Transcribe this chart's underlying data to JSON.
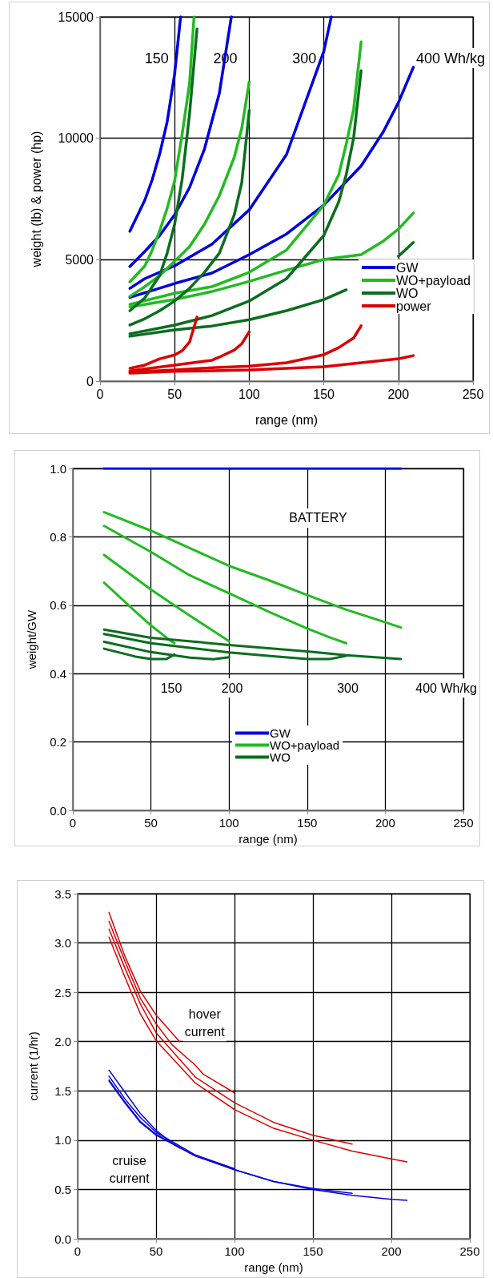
{
  "chart_data": [
    {
      "type": "line",
      "xlabel": "range (nm)",
      "ylabel": "weight (lb) & power (hp)",
      "xlim": [
        0,
        250
      ],
      "xticks": [
        0,
        50,
        100,
        150,
        200,
        250
      ],
      "ylim": [
        0,
        15000
      ],
      "yticks": [
        0,
        5000,
        10000,
        15000
      ],
      "grid": true,
      "legend": "right",
      "marker": "none",
      "line_style": "solid",
      "annotations": [
        "150",
        "200",
        "300",
        "400 Wh/kg"
      ],
      "series": [
        {
          "name": "GW",
          "color": "#0000dd",
          "x": [
            20,
            30,
            35,
            40,
            45,
            50,
            54
          ],
          "values": [
            6170,
            7450,
            8300,
            9360,
            10680,
            12650,
            15000
          ]
        },
        {
          "color": "#0000dd",
          "x": [
            20,
            30,
            40,
            50,
            60,
            70,
            80,
            88
          ],
          "values": [
            4720,
            5340,
            6000,
            6850,
            7970,
            9560,
            11860,
            15000
          ]
        },
        {
          "color": "#0000dd",
          "x": [
            20,
            30,
            50,
            75,
            100,
            125,
            150,
            155
          ],
          "values": [
            3820,
            4220,
            4750,
            5640,
            7050,
            9330,
            13580,
            15000
          ]
        },
        {
          "color": "#0000dd",
          "x": [
            20,
            50,
            75,
            100,
            125,
            150,
            175,
            190,
            200,
            210
          ],
          "values": [
            3450,
            4020,
            4450,
            5210,
            6060,
            7250,
            8860,
            10280,
            11470,
            12920
          ]
        },
        {
          "name": "WO+payload",
          "color": "#22bb22",
          "x": [
            20,
            30,
            35,
            40,
            45,
            50,
            55,
            60,
            63
          ],
          "values": [
            4090,
            4740,
            5400,
            6190,
            7120,
            8240,
            10150,
            12260,
            15000
          ]
        },
        {
          "color": "#22bb22",
          "x": [
            20,
            30,
            40,
            50,
            60,
            70,
            80,
            90,
            95,
            100
          ],
          "values": [
            3490,
            3890,
            4350,
            4940,
            5540,
            6460,
            7640,
            9230,
            10410,
            12320
          ]
        },
        {
          "color": "#22bb22",
          "x": [
            20,
            50,
            75,
            100,
            125,
            150,
            160,
            165,
            170,
            175
          ],
          "values": [
            3160,
            3620,
            3890,
            4480,
            5400,
            7250,
            8500,
            9750,
            11200,
            13970
          ]
        },
        {
          "color": "#22bb22",
          "x": [
            20,
            50,
            75,
            100,
            125,
            150,
            175,
            190,
            200,
            210
          ],
          "values": [
            3060,
            3360,
            3690,
            4110,
            4570,
            5010,
            5210,
            5770,
            6260,
            6920
          ]
        },
        {
          "name": "WO",
          "color": "#0a6e1e",
          "x": [
            20,
            30,
            40,
            45,
            50,
            55,
            60,
            65
          ],
          "values": [
            2900,
            3430,
            4350,
            5270,
            6460,
            8300,
            11000,
            14500
          ]
        },
        {
          "color": "#0a6e1e",
          "x": [
            20,
            30,
            40,
            50,
            60,
            70,
            80,
            90,
            95,
            100
          ],
          "values": [
            2310,
            2570,
            2900,
            3300,
            3820,
            4480,
            5270,
            6850,
            8170,
            11140
          ]
        },
        {
          "color": "#0a6e1e",
          "x": [
            20,
            50,
            75,
            100,
            125,
            150,
            160,
            165,
            170,
            175
          ],
          "values": [
            1950,
            2310,
            2700,
            3300,
            4220,
            6000,
            7380,
            8500,
            10020,
            12780
          ]
        },
        {
          "color": "#0a6e1e",
          "x": [
            20,
            50,
            75,
            100,
            125,
            150,
            165,
            175,
            190,
            200,
            210
          ],
          "values": [
            1850,
            2110,
            2270,
            2530,
            2900,
            3360,
            3760,
            null,
            null,
            5140,
            5710
          ]
        },
        {
          "name": "power",
          "color": "#dd0000",
          "x": [
            20,
            30,
            40,
            50,
            55,
            60,
            65
          ],
          "values": [
            530,
            660,
            920,
            1080,
            1250,
            1610,
            2640
          ]
        },
        {
          "color": "#dd0000",
          "x": [
            20,
            50,
            75,
            80,
            90,
            95,
            100
          ],
          "values": [
            420,
            660,
            860,
            990,
            1280,
            1540,
            2030
          ]
        },
        {
          "color": "#dd0000",
          "x": [
            20,
            50,
            75,
            100,
            125,
            150,
            160,
            170,
            175
          ],
          "values": [
            370,
            460,
            550,
            620,
            760,
            1090,
            1380,
            1780,
            2280
          ]
        },
        {
          "color": "#dd0000",
          "x": [
            20,
            50,
            100,
            150,
            175,
            190,
            200,
            210
          ],
          "values": [
            330,
            400,
            460,
            590,
            760,
            860,
            920,
            1050
          ]
        }
      ]
    },
    {
      "type": "line",
      "xlabel": "range (nm)",
      "ylabel": "weight/GW",
      "xlim": [
        0,
        250
      ],
      "xticks": [
        0,
        50,
        100,
        150,
        200,
        250
      ],
      "ylim": [
        0,
        1
      ],
      "yticks": [
        {
          "value": 0,
          "label": "0.0"
        },
        0.2,
        0.4,
        0.6,
        0.8,
        {
          "value": 1,
          "label": "1.0"
        }
      ],
      "grid": true,
      "legend": "bottom",
      "marker": "none",
      "line_style": "solid",
      "annotations": [
        "BATTERY",
        "150",
        "200",
        "300",
        "400 Wh/kg"
      ],
      "series": [
        {
          "name": "GW",
          "color": "#0000dd",
          "x": [
            20,
            50,
            100,
            150,
            200,
            210
          ],
          "values": [
            1,
            1,
            1,
            1,
            1,
            1
          ]
        },
        {
          "name": "WO+payload",
          "color": "#22bb22",
          "x": [
            20,
            40,
            50,
            60,
            65
          ],
          "values": [
            0.666,
            0.582,
            0.541,
            0.505,
            0.489
          ]
        },
        {
          "color": "#22bb22",
          "x": [
            20,
            50,
            75,
            100
          ],
          "values": [
            0.747,
            0.646,
            0.569,
            0.495
          ]
        },
        {
          "color": "#22bb22",
          "x": [
            20,
            50,
            75,
            100,
            125,
            150,
            165,
            175
          ],
          "values": [
            0.832,
            0.756,
            0.687,
            0.635,
            0.582,
            0.532,
            0.505,
            0.489
          ]
        },
        {
          "color": "#22bb22",
          "x": [
            20,
            50,
            75,
            100,
            125,
            150,
            175,
            200,
            210
          ],
          "values": [
            0.872,
            0.818,
            0.767,
            0.715,
            0.674,
            0.63,
            0.587,
            0.55,
            0.535
          ]
        },
        {
          "name": "WO",
          "color": "#0a6e1e",
          "x": [
            20,
            40,
            50,
            60,
            65
          ],
          "values": [
            0.473,
            0.45,
            0.443,
            0.443,
            0.456
          ]
        },
        {
          "color": "#0a6e1e",
          "x": [
            20,
            50,
            75,
            90,
            100
          ],
          "values": [
            0.493,
            0.463,
            0.447,
            0.442,
            0.448
          ]
        },
        {
          "color": "#0a6e1e",
          "x": [
            20,
            50,
            100,
            125,
            150,
            165,
            175
          ],
          "values": [
            0.516,
            0.489,
            0.462,
            0.452,
            0.443,
            0.443,
            0.452
          ]
        },
        {
          "color": "#0a6e1e",
          "x": [
            20,
            50,
            100,
            150,
            175,
            210
          ],
          "values": [
            0.529,
            0.505,
            0.484,
            0.465,
            0.454,
            0.443
          ]
        }
      ]
    },
    {
      "type": "line",
      "xlabel": "range (nm)",
      "ylabel": "current (1/hr)",
      "xlim": [
        0,
        250
      ],
      "xticks": [
        0,
        50,
        100,
        150,
        200,
        250
      ],
      "ylim": [
        0,
        3.5
      ],
      "yticks": [
        {
          "value": 0,
          "label": "0.0"
        },
        0.5,
        {
          "value": 1,
          "label": "1.0"
        },
        1.5,
        {
          "value": 2,
          "label": "2.0"
        },
        2.5,
        {
          "value": 3,
          "label": "3.0"
        },
        3.5
      ],
      "grid": true,
      "marker": "none",
      "line_style": "solid",
      "annotations": [
        "hover current",
        "cruise current"
      ],
      "series": [
        {
          "color": "#e00000",
          "x": [
            20,
            30,
            40,
            50,
            60,
            65
          ],
          "values": [
            3.31,
            2.87,
            2.51,
            2.27,
            2.09,
            2.0
          ]
        },
        {
          "color": "#e00000",
          "x": [
            20,
            30,
            40,
            50,
            60,
            75,
            80,
            100
          ],
          "values": [
            3.22,
            2.82,
            2.44,
            2.18,
            1.97,
            1.76,
            1.67,
            1.48
          ]
        },
        {
          "color": "#e00000",
          "x": [
            20,
            30,
            40,
            50,
            75,
            100,
            125,
            150,
            175
          ],
          "values": [
            3.14,
            2.75,
            2.38,
            2.09,
            1.64,
            1.38,
            1.18,
            1.05,
            0.96
          ]
        },
        {
          "color": "#e00000",
          "x": [
            20,
            30,
            40,
            50,
            75,
            100,
            125,
            150,
            175,
            200,
            210
          ],
          "values": [
            3.06,
            2.66,
            2.28,
            2.01,
            1.58,
            1.31,
            1.12,
            1.0,
            0.89,
            0.81,
            0.78
          ]
        },
        {
          "color": "#0000dd",
          "x": [
            20,
            30,
            40,
            50,
            60,
            65
          ],
          "values": [
            1.71,
            1.49,
            1.27,
            1.1,
            0.97,
            0.92
          ]
        },
        {
          "color": "#0000dd",
          "x": [
            20,
            30,
            40,
            50,
            75,
            100
          ],
          "values": [
            1.65,
            1.42,
            1.23,
            1.08,
            0.85,
            0.71
          ]
        },
        {
          "color": "#0000dd",
          "x": [
            20,
            30,
            40,
            50,
            75,
            100,
            125,
            150,
            175
          ],
          "values": [
            1.61,
            1.39,
            1.19,
            1.06,
            0.84,
            0.7,
            0.58,
            0.51,
            0.46
          ]
        },
        {
          "color": "#0000dd",
          "x": [
            20,
            30,
            40,
            50,
            75,
            100,
            125,
            150,
            175,
            200,
            210
          ],
          "values": [
            1.6,
            1.38,
            1.18,
            1.05,
            0.84,
            0.7,
            0.58,
            0.5,
            0.44,
            0.4,
            0.39
          ]
        }
      ]
    }
  ]
}
